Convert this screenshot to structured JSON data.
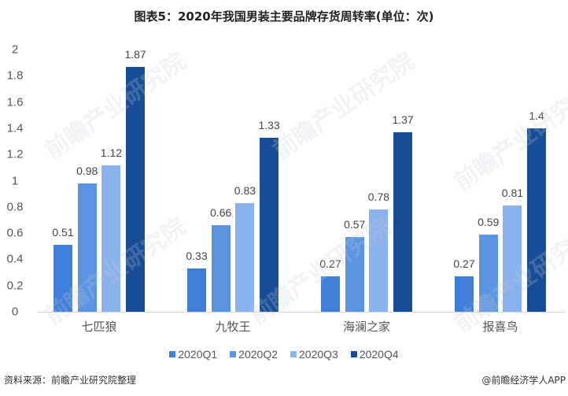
{
  "title": "图表5：2020年我国男装主要品牌存货周转率(单位：次)",
  "footer": {
    "source": "资料来源：前瞻产业研究院整理",
    "credit": "@前瞻经济学人APP"
  },
  "watermark": "前瞻产业研究院",
  "colors": {
    "2020Q1": "#3f7fda",
    "2020Q2": "#5b95e2",
    "2020Q3": "#8ab2ec",
    "2020Q4": "#174d96"
  },
  "chart_data": {
    "type": "bar",
    "title": "图表5：2020年我国男装主要品牌存货周转率(单位：次)",
    "xlabel": "",
    "ylabel": "",
    "ylim": [
      0,
      2
    ],
    "yticks": [
      0,
      0.2,
      0.4,
      0.6,
      0.8,
      1,
      1.2,
      1.4,
      1.6,
      1.8,
      2
    ],
    "ytick_labels": [
      "0",
      "0.2",
      "0.4",
      "0.6",
      "0.8",
      "1",
      "1.2",
      "1.4",
      "1.6",
      "1.8",
      "2"
    ],
    "categories": [
      "七匹狼",
      "九牧王",
      "海澜之家",
      "报喜鸟"
    ],
    "series": [
      {
        "name": "2020Q1",
        "values": [
          0.51,
          0.33,
          0.27,
          0.27
        ],
        "labels": [
          "0.51",
          "0.33",
          "0.27",
          "0.27"
        ]
      },
      {
        "name": "2020Q2",
        "values": [
          0.98,
          0.66,
          0.57,
          0.59
        ],
        "labels": [
          "0.98",
          "0.66",
          "0.57",
          "0.59"
        ]
      },
      {
        "name": "2020Q3",
        "values": [
          1.12,
          0.83,
          0.78,
          0.81
        ],
        "labels": [
          "1.12",
          "0.83",
          "0.78",
          "0.81"
        ]
      },
      {
        "name": "2020Q4",
        "values": [
          1.87,
          1.33,
          1.37,
          1.4
        ],
        "labels": [
          "1.87",
          "1.33",
          "1.37",
          "1.4"
        ]
      }
    ],
    "grid": false,
    "legend_position": "bottom"
  }
}
